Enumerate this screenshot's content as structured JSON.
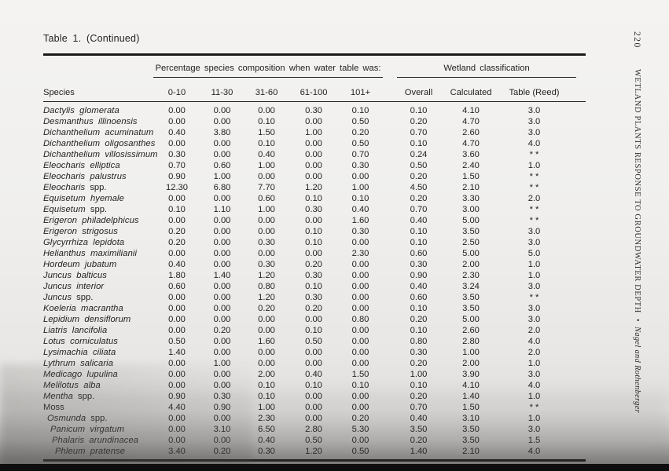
{
  "colors": {
    "ink": "#1a1a1a",
    "paper": "#f0efed",
    "footer_bar": "#0e0e0e"
  },
  "page": {
    "title": "Table 1. (Continued)",
    "side": {
      "page_number": "220",
      "running_head": "WETLAND PLANTS RESPONSE TO GROUNDWATER DEPTH",
      "separator": "•",
      "authors": "Nagel and Rothenberger"
    }
  },
  "table": {
    "group_headers": {
      "percentage": "Percentage species composition when water table was:",
      "classification": "Wetland classification"
    },
    "columns": {
      "species": "Species",
      "depth_bins": [
        "0-10",
        "11-30",
        "31-60",
        "61-100",
        "101+"
      ],
      "classification": [
        "Overall",
        "Calculated",
        "Table (Reed)"
      ]
    },
    "rows": [
      {
        "italic": "Dactylis glomerata",
        "roman": "",
        "values": [
          "0.00",
          "0.00",
          "0.00",
          "0.30",
          "0.10",
          "0.10",
          "4.10",
          "3.0"
        ]
      },
      {
        "italic": "Desmanthus illinoensis",
        "roman": "",
        "values": [
          "0.00",
          "0.00",
          "0.10",
          "0.00",
          "0.50",
          "0.20",
          "4.70",
          "3.0"
        ]
      },
      {
        "italic": "Dichanthelium acuminatum",
        "roman": "",
        "values": [
          "0.40",
          "3.80",
          "1.50",
          "1.00",
          "0.20",
          "0.70",
          "2.60",
          "3.0"
        ]
      },
      {
        "italic": "Dichanthelium oligosanthes",
        "roman": "",
        "values": [
          "0.00",
          "0.00",
          "0.10",
          "0.00",
          "0.50",
          "0.10",
          "4.70",
          "4.0"
        ]
      },
      {
        "italic": "Dichanthelium villosissimum",
        "roman": "",
        "values": [
          "0.30",
          "0.00",
          "0.40",
          "0.00",
          "0.70",
          "0.24",
          "3.60",
          "* *"
        ]
      },
      {
        "italic": "Eleocharis elliptica",
        "roman": "",
        "values": [
          "0.70",
          "0.60",
          "1.00",
          "0.00",
          "0.30",
          "0.50",
          "2.40",
          "1.0"
        ]
      },
      {
        "italic": "Eleocharis palustrus",
        "roman": "",
        "values": [
          "0.90",
          "1.00",
          "0.00",
          "0.00",
          "0.00",
          "0.20",
          "1.50",
          "* *"
        ]
      },
      {
        "italic": "Eleocharis",
        "roman": "spp.",
        "values": [
          "12.30",
          "6.80",
          "7.70",
          "1.20",
          "1.00",
          "4.50",
          "2.10",
          "* *"
        ]
      },
      {
        "italic": "Equisetum hyemale",
        "roman": "",
        "values": [
          "0.00",
          "0.00",
          "0.60",
          "0.10",
          "0.10",
          "0.20",
          "3.30",
          "2.0"
        ]
      },
      {
        "italic": "Equisetum",
        "roman": "spp.",
        "values": [
          "0.10",
          "1.10",
          "1.00",
          "0.30",
          "0.40",
          "0.70",
          "3.00",
          "* *"
        ]
      },
      {
        "italic": "Erigeron philadelphicus",
        "roman": "",
        "values": [
          "0.00",
          "0.00",
          "0.00",
          "0.00",
          "1.60",
          "0.40",
          "5.00",
          "* *"
        ]
      },
      {
        "italic": "Erigeron strigosus",
        "roman": "",
        "values": [
          "0.20",
          "0.00",
          "0.00",
          "0.10",
          "0.30",
          "0.10",
          "3.50",
          "3.0"
        ]
      },
      {
        "italic": "Glycyrrhiza lepidota",
        "roman": "",
        "values": [
          "0.20",
          "0.00",
          "0.30",
          "0.10",
          "0.00",
          "0.10",
          "2.50",
          "3.0"
        ]
      },
      {
        "italic": "Helianthus maximilianii",
        "roman": "",
        "values": [
          "0.00",
          "0.00",
          "0.00",
          "0.00",
          "2.30",
          "0.60",
          "5.00",
          "5.0"
        ]
      },
      {
        "italic": "Hordeum jubatum",
        "roman": "",
        "values": [
          "0.40",
          "0.00",
          "0.30",
          "0.20",
          "0.00",
          "0.30",
          "2.00",
          "1.0"
        ]
      },
      {
        "italic": "Juncus balticus",
        "roman": "",
        "values": [
          "1.80",
          "1.40",
          "1.20",
          "0.30",
          "0.00",
          "0.90",
          "2.30",
          "1.0"
        ]
      },
      {
        "italic": "Juncus interior",
        "roman": "",
        "values": [
          "0.60",
          "0.00",
          "0.80",
          "0.10",
          "0.00",
          "0.40",
          "3.24",
          "3.0"
        ]
      },
      {
        "italic": "Juncus",
        "roman": "spp.",
        "values": [
          "0.00",
          "0.00",
          "1.20",
          "0.30",
          "0.00",
          "0.60",
          "3.50",
          "* *"
        ]
      },
      {
        "italic": "Koeleria macrantha",
        "roman": "",
        "values": [
          "0.00",
          "0.00",
          "0.20",
          "0.20",
          "0.00",
          "0.10",
          "3.50",
          "3.0"
        ]
      },
      {
        "italic": "Lepidium densiflorum",
        "roman": "",
        "values": [
          "0.00",
          "0.00",
          "0.00",
          "0.00",
          "0.80",
          "0.20",
          "5.00",
          "3.0"
        ]
      },
      {
        "italic": "Liatris lancifolia",
        "roman": "",
        "values": [
          "0.00",
          "0.20",
          "0.00",
          "0.10",
          "0.00",
          "0.10",
          "2.60",
          "2.0"
        ]
      },
      {
        "italic": "Lotus corniculatus",
        "roman": "",
        "values": [
          "0.50",
          "0.00",
          "1.60",
          "0.50",
          "0.00",
          "0.80",
          "2.80",
          "4.0"
        ]
      },
      {
        "italic": "Lysimachia ciliata",
        "roman": "",
        "values": [
          "1.40",
          "0.00",
          "0.00",
          "0.00",
          "0.00",
          "0.30",
          "1.00",
          "2.0"
        ]
      },
      {
        "italic": "Lythrum salicaria",
        "roman": "",
        "values": [
          "0.00",
          "1.00",
          "0.00",
          "0.00",
          "0.00",
          "0.20",
          "2.00",
          "1.0"
        ]
      },
      {
        "italic": "Medicago lupulina",
        "roman": "",
        "values": [
          "0.00",
          "0.00",
          "2.00",
          "0.40",
          "1.50",
          "1.00",
          "3.90",
          "3.0"
        ]
      },
      {
        "italic": "Melilotus alba",
        "roman": "",
        "values": [
          "0.00",
          "0.00",
          "0.10",
          "0.10",
          "0.10",
          "0.10",
          "4.10",
          "4.0"
        ]
      },
      {
        "italic": "Mentha",
        "roman": "spp.",
        "values": [
          "0.90",
          "0.30",
          "0.10",
          "0.00",
          "0.00",
          "0.20",
          "1.40",
          "1.0"
        ]
      },
      {
        "italic": "",
        "roman": "Moss",
        "values": [
          "4.40",
          "0.90",
          "1.00",
          "0.00",
          "0.00",
          "0.70",
          "1.50",
          "* *"
        ]
      },
      {
        "italic": "Osmunda",
        "roman": "spp.",
        "values": [
          "0.00",
          "0.00",
          "2.30",
          "0.00",
          "0.20",
          "0.40",
          "3.10",
          "1.0"
        ]
      },
      {
        "italic": "Panicum virgatum",
        "roman": "",
        "values": [
          "0.00",
          "3.10",
          "6.50",
          "2.80",
          "5.30",
          "3.50",
          "3.50",
          "3.0"
        ]
      },
      {
        "italic": "Phalaris arundinacea",
        "roman": "",
        "values": [
          "0.00",
          "0.00",
          "0.40",
          "0.50",
          "0.00",
          "0.20",
          "3.50",
          "1.5"
        ]
      },
      {
        "italic": "Phleum pratense",
        "roman": "",
        "values": [
          "3.40",
          "0.20",
          "0.30",
          "1.20",
          "0.50",
          "1.40",
          "2.10",
          "4.0"
        ]
      }
    ]
  }
}
